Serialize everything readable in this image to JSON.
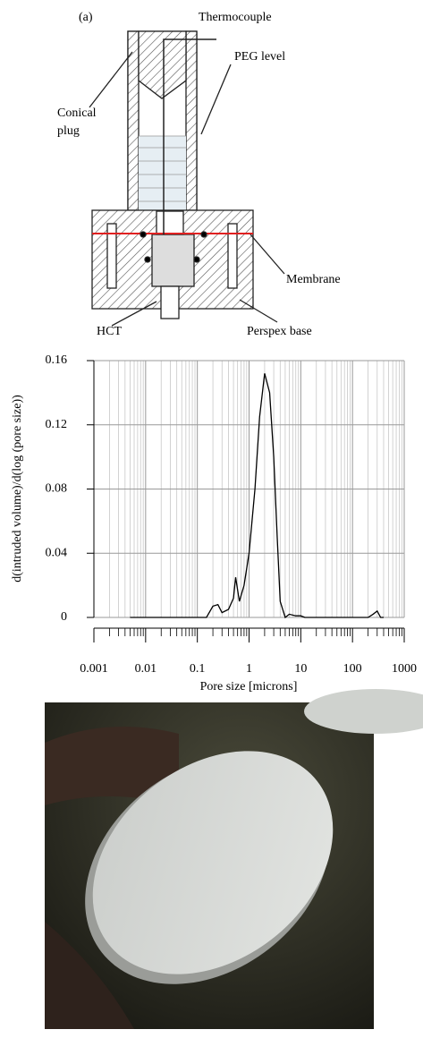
{
  "diagram": {
    "panel_label": "(a)",
    "labels": [
      "Thermocouple",
      "PEG level",
      "Conical",
      "plug",
      "Membrane",
      "HCT",
      "Perspex base"
    ]
  },
  "chart_data": {
    "type": "line",
    "x_label": "Pore size [microns]",
    "y_label": "d(intruded volume)/d(log (pore size))",
    "log_x": true,
    "grid": true,
    "xlim": [
      0.001,
      1000
    ],
    "xticks": [
      0.001,
      0.01,
      0.1,
      1,
      10,
      100,
      1000
    ],
    "ylim": [
      0,
      0.16
    ],
    "yticks": [
      0,
      0.04,
      0.08,
      0.12,
      0.16
    ],
    "series": [
      {
        "color": "#000000",
        "x": [
          0.005,
          0.15,
          0.2,
          0.25,
          0.3,
          0.4,
          0.5,
          0.55,
          0.65,
          0.8,
          1.0,
          1.3,
          1.6,
          2.0,
          2.5,
          3.0,
          3.5,
          4.0,
          5,
          6,
          8,
          10,
          12,
          200,
          250,
          300,
          350,
          400
        ],
        "values": [
          0,
          0,
          0.007,
          0.008,
          0.003,
          0.005,
          0.012,
          0.025,
          0.01,
          0.02,
          0.04,
          0.08,
          0.125,
          0.152,
          0.14,
          0.1,
          0.05,
          0.01,
          0,
          0.002,
          0.001,
          0.001,
          0,
          0,
          0.002,
          0.004,
          0,
          0
        ]
      }
    ]
  }
}
